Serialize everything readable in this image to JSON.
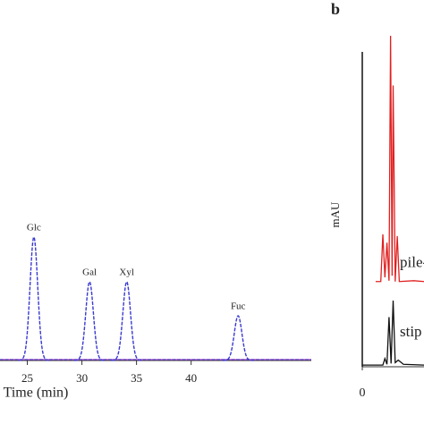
{
  "chart_data": [
    {
      "type": "peaks",
      "x_label": "Time (min)",
      "xlim": [
        22.5,
        51
      ],
      "xticks": [
        25,
        30,
        35,
        40
      ],
      "ylim": [
        0,
        150
      ],
      "color": "#3a3ad0",
      "baseline_color": "#d040d0",
      "peaks": [
        {
          "label": "Glc",
          "x": 25.6,
          "height": 138
        },
        {
          "label": "Gal",
          "x": 30.7,
          "height": 88
        },
        {
          "label": "Xyl",
          "x": 34.1,
          "height": 88
        },
        {
          "label": "Fuc",
          "x": 44.3,
          "height": 50
        }
      ]
    },
    {
      "type": "line",
      "panel_label": "b",
      "y_label": "mAU",
      "xlim": [
        0,
        6
      ],
      "xticks": [
        0
      ],
      "ylim": [
        0,
        400
      ],
      "series": [
        {
          "name": "pile-",
          "color": "#e02020",
          "x": [
            1.3,
            1.8,
            2.0,
            2.2,
            2.4,
            2.6,
            2.75,
            2.9,
            3.0,
            3.2,
            3.4,
            3.6,
            5,
            6
          ],
          "values": [
            103,
            103,
            160,
            108,
            150,
            104,
            400,
            110,
            340,
            103,
            158,
            103,
            104,
            103
          ]
        },
        {
          "name": "stip",
          "color": "#111111",
          "x": [
            0,
            2.0,
            2.2,
            2.4,
            2.6,
            2.8,
            3.0,
            3.2,
            3.5,
            4,
            6
          ],
          "values": [
            2,
            2,
            10,
            3,
            60,
            4,
            80,
            5,
            8,
            3,
            2
          ]
        }
      ]
    }
  ]
}
